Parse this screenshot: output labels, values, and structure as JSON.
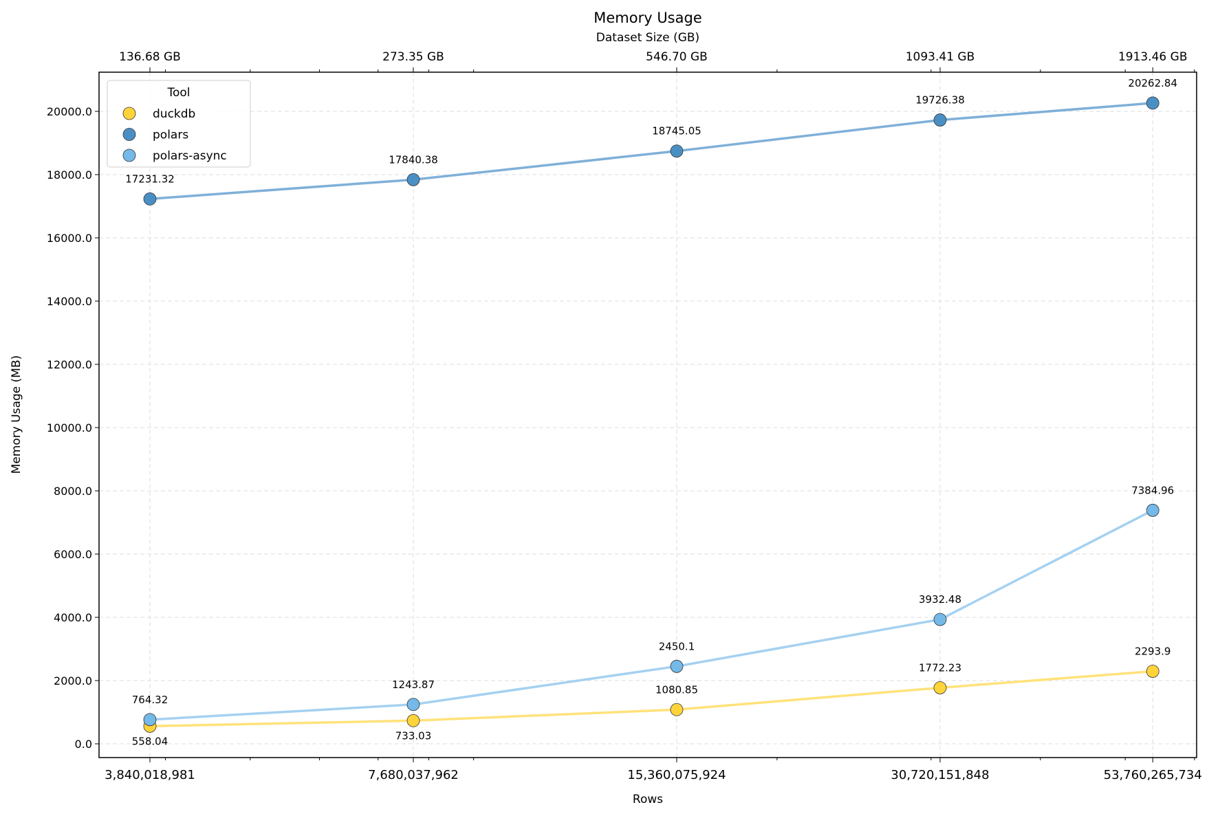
{
  "chart_data": {
    "type": "line",
    "title": "Memory Usage",
    "xlabel": "Rows",
    "ylabel": "Memory Usage (MB)",
    "top_xlabel": "Dataset Size (GB)",
    "x": [
      3840018981,
      7680037962,
      15360075924,
      30720151848,
      53760265734
    ],
    "x_tick_labels": [
      "3,840,018,981",
      "7,680,037,962",
      "15,360,075,924",
      "30,720,151,848",
      "53,760,265,734"
    ],
    "top_tick_labels": [
      "136.68 GB",
      "273.35 GB",
      "546.70 GB",
      "1093.41 GB",
      "1913.46 GB"
    ],
    "x_scale": "log",
    "ylim": [
      -400,
      21200
    ],
    "y_ticks": [
      0,
      2000,
      4000,
      6000,
      8000,
      10000,
      12000,
      14000,
      16000,
      18000,
      20000
    ],
    "y_tick_labels": [
      "0.0",
      "2000.0",
      "4000.0",
      "6000.0",
      "8000.0",
      "10000.0",
      "12000.0",
      "14000.0",
      "16000.0",
      "18000.0",
      "20000.0"
    ],
    "grid": true,
    "legend": {
      "title": "Tool",
      "placement": "top-left"
    },
    "series": [
      {
        "name": "duckdb",
        "values": [
          558.04,
          733.03,
          1080.85,
          1772.23,
          2293.9
        ],
        "labels": [
          "558.04",
          "733.03",
          "1080.85",
          "1772.23",
          "2293.9"
        ],
        "marker_color": "#FFD43B",
        "line_color": "#FFE27A"
      },
      {
        "name": "polars",
        "values": [
          17231.32,
          17840.38,
          18745.05,
          19726.38,
          20262.84
        ],
        "labels": [
          "17231.32",
          "17840.38",
          "18745.05",
          "19726.38",
          "20262.84"
        ],
        "marker_color": "#4A8FC4",
        "line_color": "#7FB0D8"
      },
      {
        "name": "polars-async",
        "values": [
          764.32,
          1243.87,
          2450.1,
          3932.48,
          7384.96
        ],
        "labels": [
          "764.32",
          "1243.87",
          "2450.1",
          "3932.48",
          "7384.96"
        ],
        "marker_color": "#74B9E8",
        "line_color": "#A5D1F0"
      }
    ]
  }
}
